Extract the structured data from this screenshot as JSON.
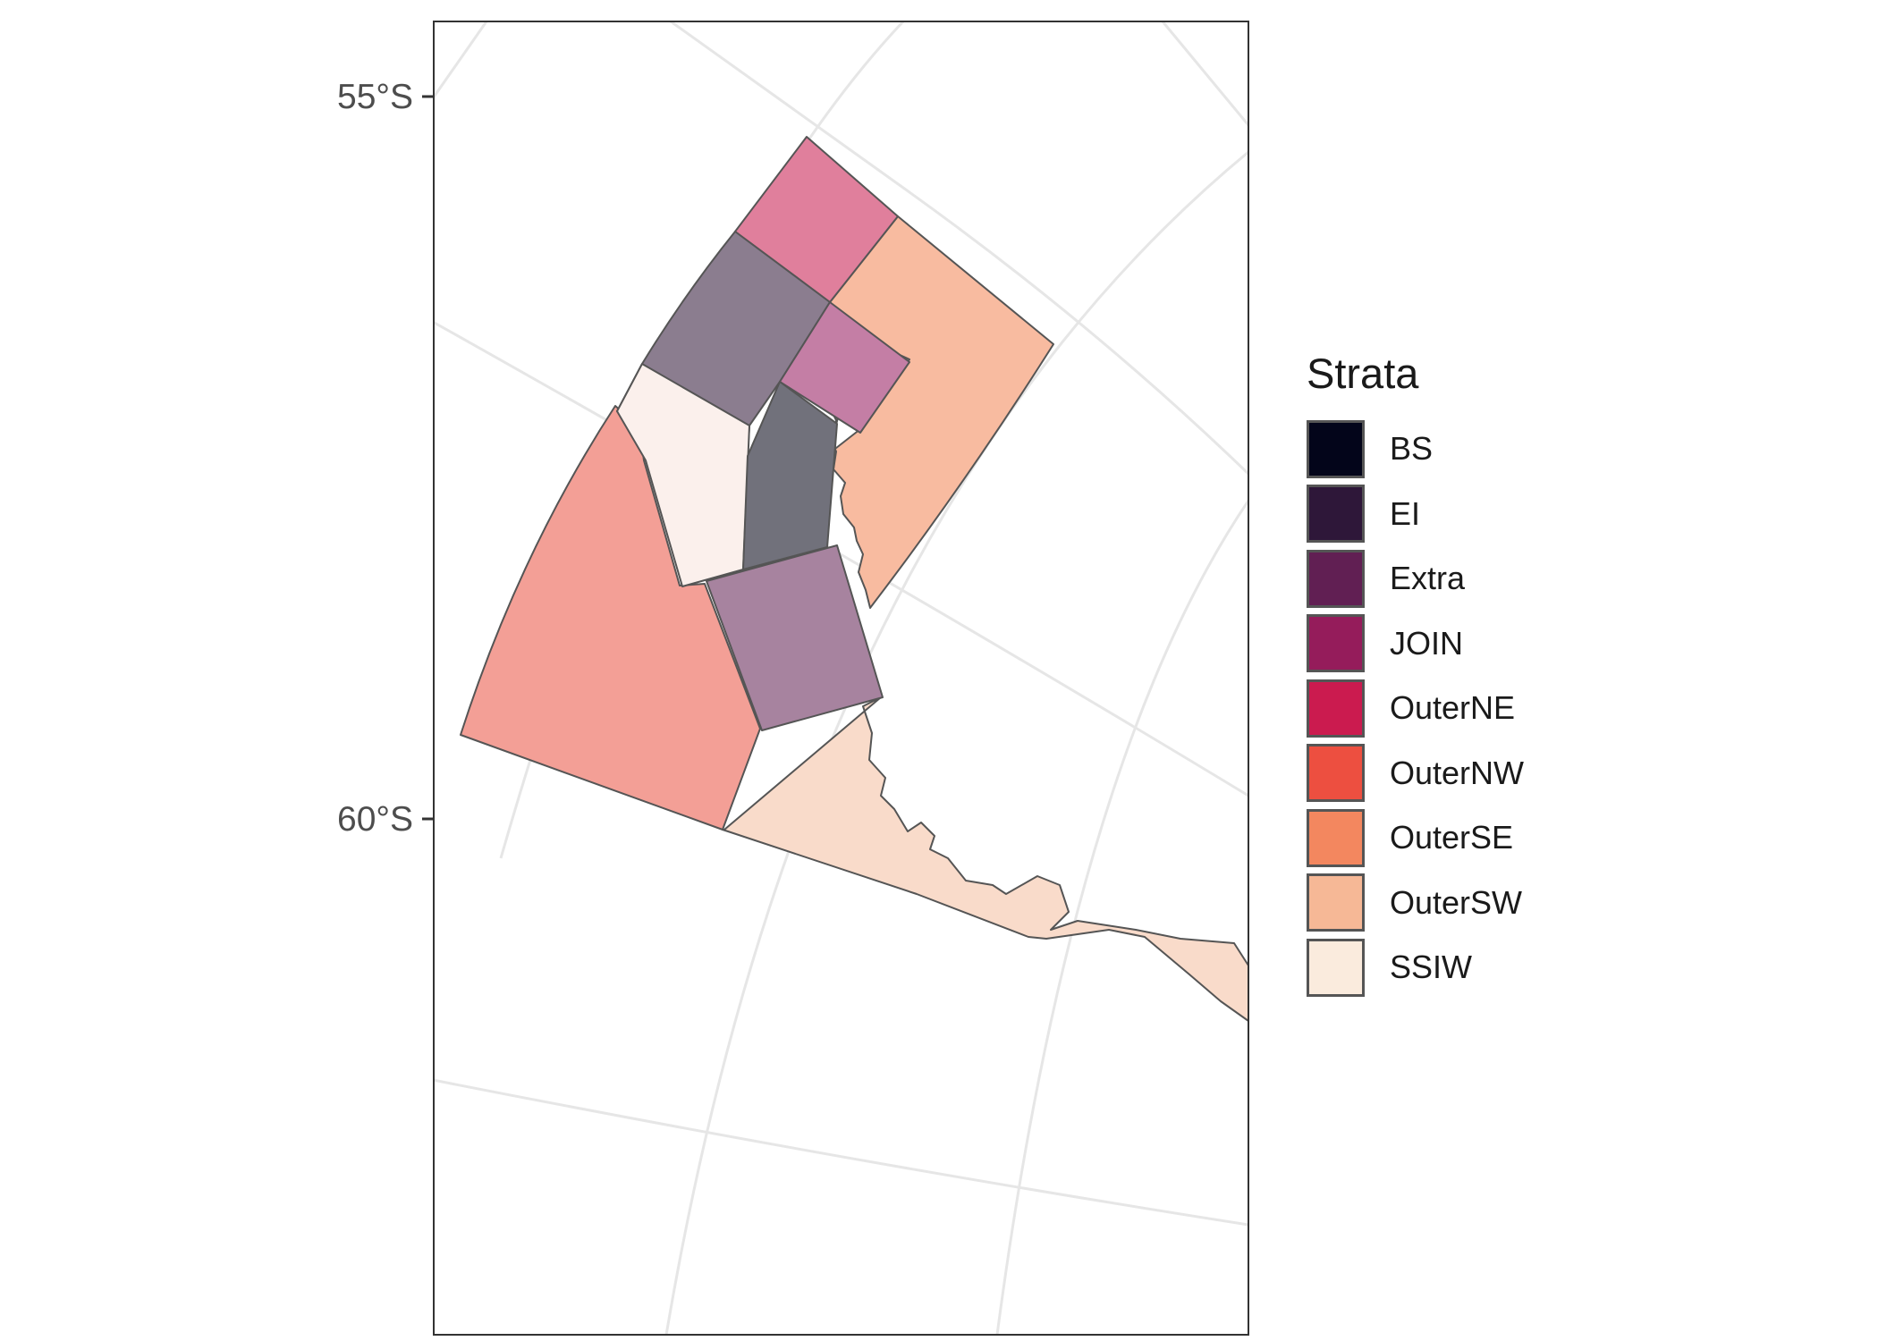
{
  "map": {
    "latitude_labels": [
      "55°S",
      "60°S"
    ],
    "strata_fills": {
      "northern_block": "#e07f9c",
      "outer_east": "#f8bba0",
      "upper_central": "#8b7d8f",
      "central_small": "#c47ea5",
      "western_wedge": "#fbf0ec",
      "central_dark": "#71717b",
      "outer_west": "#f39f96",
      "central_lower": "#a7839f",
      "southern_coast": "#f9dbca"
    },
    "stroke_color": "#555555",
    "graticule_color": "#e6e6e6"
  },
  "legend": {
    "title": "Strata",
    "items": [
      {
        "label": "BS",
        "color": "#03051a"
      },
      {
        "label": "EI",
        "color": "#2e1739"
      },
      {
        "label": "Extra",
        "color": "#611f53"
      },
      {
        "label": "JOIN",
        "color": "#951c5b"
      },
      {
        "label": "OuterNE",
        "color": "#cb1b4f"
      },
      {
        "label": "OuterNW",
        "color": "#ed4f40"
      },
      {
        "label": "OuterSE",
        "color": "#f3875f"
      },
      {
        "label": "OuterSW",
        "color": "#f6b896"
      },
      {
        "label": "SSIW",
        "color": "#faebdd"
      }
    ]
  }
}
